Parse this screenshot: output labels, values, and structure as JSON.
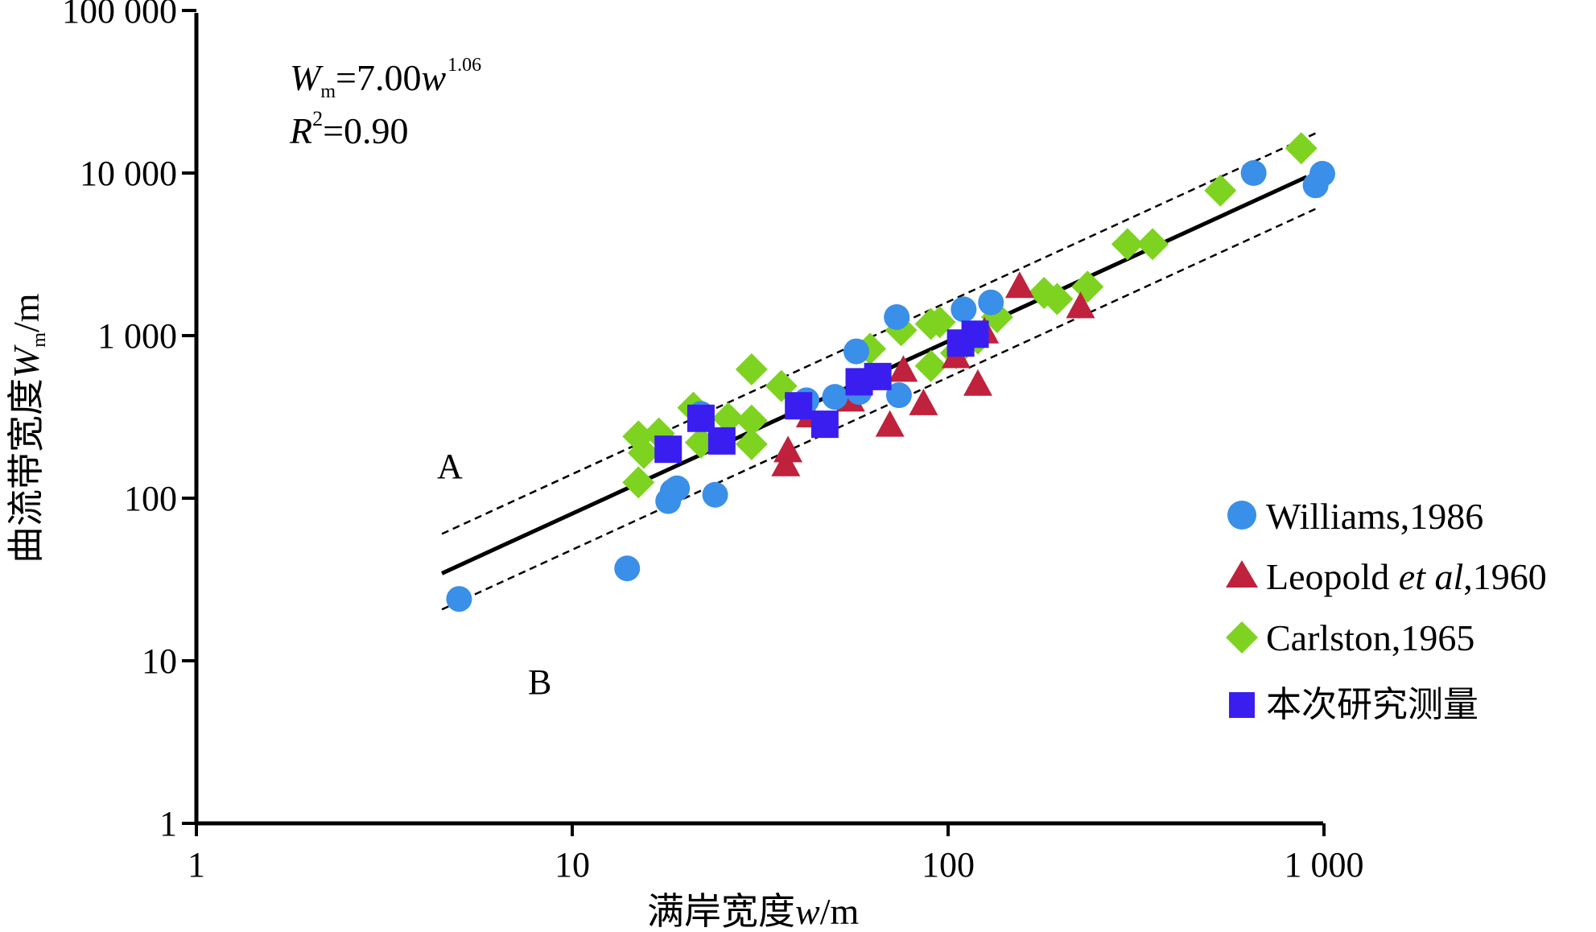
{
  "chart_data": {
    "type": "scatter",
    "xscale": "log",
    "yscale": "log",
    "xlim": [
      1,
      1000
    ],
    "ylim": [
      1,
      100000
    ],
    "xticks": [
      1,
      10,
      100,
      1000
    ],
    "xtick_labels": [
      "1",
      "10",
      "100",
      "1 000"
    ],
    "yticks": [
      1,
      10,
      100,
      1000,
      10000,
      100000
    ],
    "ytick_labels": [
      "1",
      "10",
      "100",
      "1 000",
      "10 000",
      "100 000"
    ],
    "xlabel": {
      "prefix": "满岸宽度",
      "var": "w",
      "unit": "/m"
    },
    "ylabel": {
      "prefix": "曲流带宽度",
      "var": "W",
      "sub": "m",
      "unit": "/m"
    },
    "equation": {
      "lhs_var": "W",
      "lhs_sub": "m",
      "eq_coef": "=7.00",
      "rhs_var": "w",
      "rhs_exp": "1.06"
    },
    "r2": {
      "var": "R",
      "exp": "2",
      "value": "=0.90"
    },
    "fit": {
      "coef": 7.0,
      "exp": 1.06,
      "x_range": [
        4.5,
        900
      ]
    },
    "bands": {
      "upper_factor": 1.75,
      "lower_factor": 0.6,
      "x_range": [
        4.5,
        950
      ]
    },
    "region_labels": {
      "above": "A",
      "below": "B"
    },
    "legend_position": "right",
    "series": [
      {
        "name": "Williams,1986",
        "marker": "circle",
        "color": "#3a8fe8",
        "points": [
          [
            5,
            24
          ],
          [
            14,
            37
          ],
          [
            18,
            96
          ],
          [
            18.5,
            110
          ],
          [
            19,
            115
          ],
          [
            22,
            330
          ],
          [
            24,
            105
          ],
          [
            42,
            400
          ],
          [
            50,
            420
          ],
          [
            57,
            800
          ],
          [
            58,
            450
          ],
          [
            73,
            1300
          ],
          [
            74,
            430
          ],
          [
            110,
            1450
          ],
          [
            130,
            1600
          ],
          [
            650,
            10000
          ],
          [
            950,
            8400
          ],
          [
            990,
            9900
          ]
        ]
      },
      {
        "name": "Leopold et al,1960",
        "name_parts": {
          "pre": "Leopold ",
          "italic": "et al",
          "post": ",1960"
        },
        "marker": "triangle",
        "color": "#c0213c",
        "points": [
          [
            37,
            160
          ],
          [
            37.5,
            195
          ],
          [
            43,
            320
          ],
          [
            55,
            400
          ],
          [
            70,
            280
          ],
          [
            76,
            610
          ],
          [
            86,
            380
          ],
          [
            105,
            740
          ],
          [
            120,
            500
          ],
          [
            125,
            1050
          ],
          [
            155,
            2000
          ],
          [
            225,
            1500
          ]
        ]
      },
      {
        "name": "Carlston,1965",
        "marker": "diamond",
        "color": "#7ed321",
        "points": [
          [
            15,
            125
          ],
          [
            15.5,
            190
          ],
          [
            15,
            240
          ],
          [
            17,
            250
          ],
          [
            21,
            360
          ],
          [
            22,
            220
          ],
          [
            26,
            310
          ],
          [
            30,
            620
          ],
          [
            30,
            300
          ],
          [
            30,
            215
          ],
          [
            36,
            490
          ],
          [
            62,
            830
          ],
          [
            75,
            1080
          ],
          [
            90,
            650
          ],
          [
            90,
            1180
          ],
          [
            95,
            1210
          ],
          [
            105,
            780
          ],
          [
            120,
            960
          ],
          [
            135,
            1300
          ],
          [
            180,
            1830
          ],
          [
            195,
            1680
          ],
          [
            235,
            2000
          ],
          [
            300,
            3650
          ],
          [
            350,
            3650
          ],
          [
            530,
            7800
          ],
          [
            870,
            14200
          ]
        ]
      },
      {
        "name": "本次研究测量",
        "marker": "square",
        "color": "#3a1ef0",
        "points": [
          [
            18,
            200
          ],
          [
            22,
            310
          ],
          [
            25,
            225
          ],
          [
            40,
            370
          ],
          [
            47,
            285
          ],
          [
            58,
            520
          ],
          [
            65,
            560
          ],
          [
            108,
            900
          ],
          [
            118,
            1020
          ]
        ]
      }
    ]
  }
}
